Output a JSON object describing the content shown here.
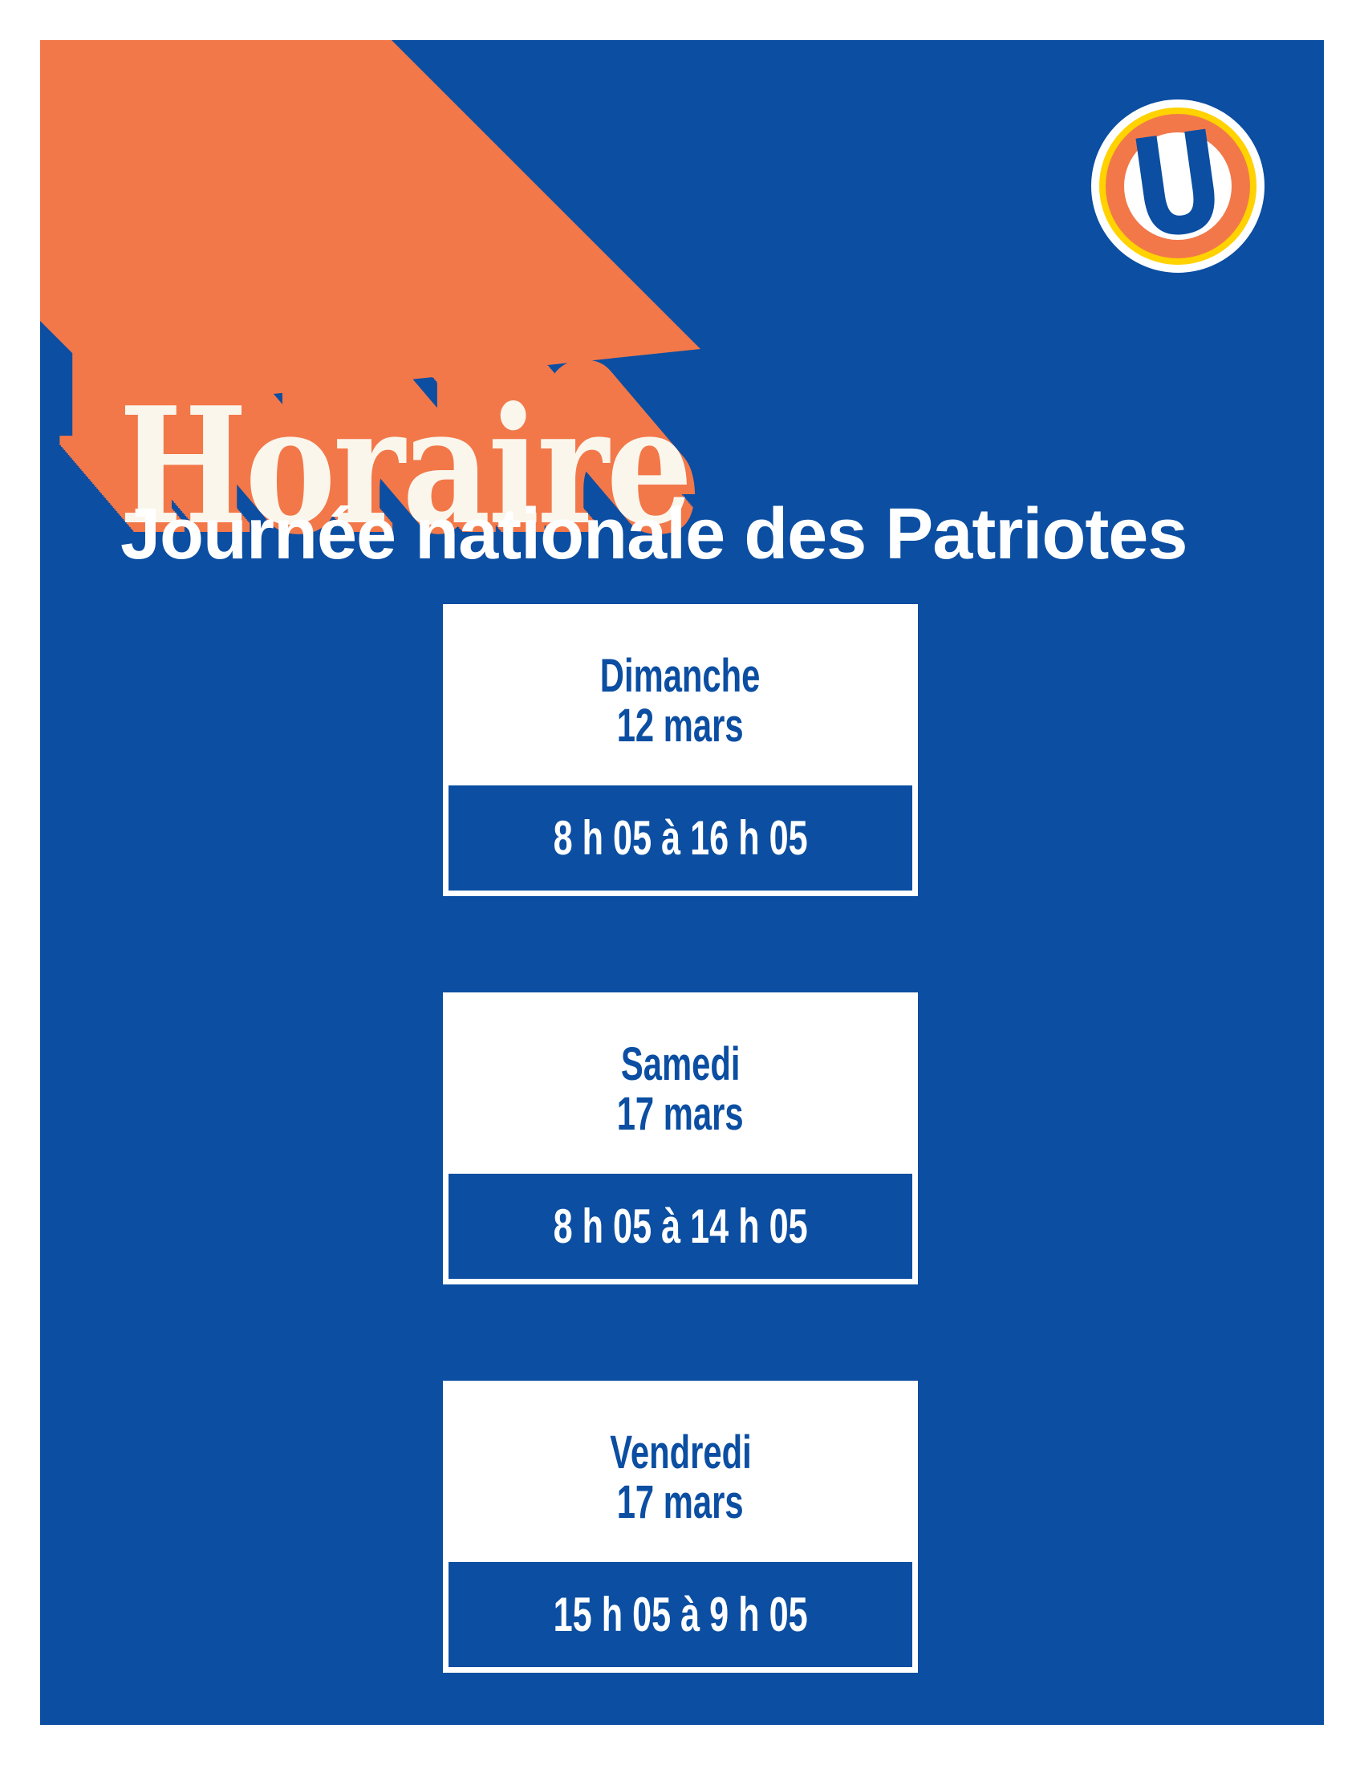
{
  "colors": {
    "blue": "#0B4EA2",
    "orange": "#F2784A",
    "yellow": "#FFD200",
    "cream": "#FBF6EC"
  },
  "logo": {
    "letter": "U"
  },
  "header": {
    "title": "Horaire",
    "subtitle": "Journée nationale des Patriotes"
  },
  "schedule": [
    {
      "day": "Dimanche",
      "date": "12 mars",
      "hours": "8 h 05 à 16 h 05"
    },
    {
      "day": "Samedi",
      "date": "17 mars",
      "hours": "8 h 05 à 14 h 05"
    },
    {
      "day": "Vendredi",
      "date": "17 mars",
      "hours": "15 h 05 à 9 h 05"
    }
  ]
}
